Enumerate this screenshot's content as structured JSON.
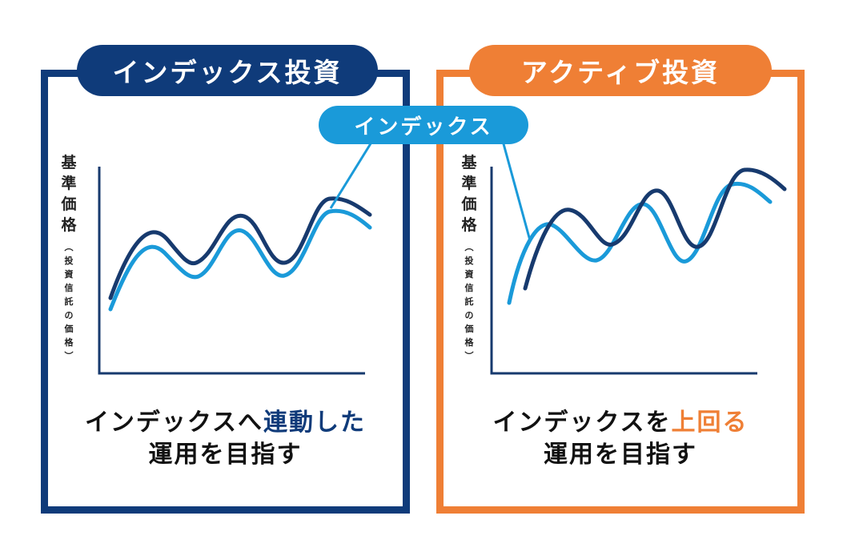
{
  "left": {
    "title": "インデックス投資",
    "ylabel_main": "基準価格",
    "ylabel_sub": "（投資信託の価格）",
    "caption_line1_prefix": "インデックスへ",
    "caption_line1_highlight": "連動した",
    "caption_line2": "運用を目指す"
  },
  "right": {
    "title": "アクティブ投資",
    "ylabel_main": "基準価格",
    "ylabel_sub": "（投資信託の価格）",
    "caption_line1_prefix": "インデックスを",
    "caption_line1_highlight": "上回る",
    "caption_line2": "運用を目指す"
  },
  "callout": {
    "label": "インデックス"
  },
  "colors": {
    "navy": "#0f3b7a",
    "orange": "#ef7f35",
    "index_blue": "#1a9ad9",
    "fund_line": "#173a6e"
  }
}
